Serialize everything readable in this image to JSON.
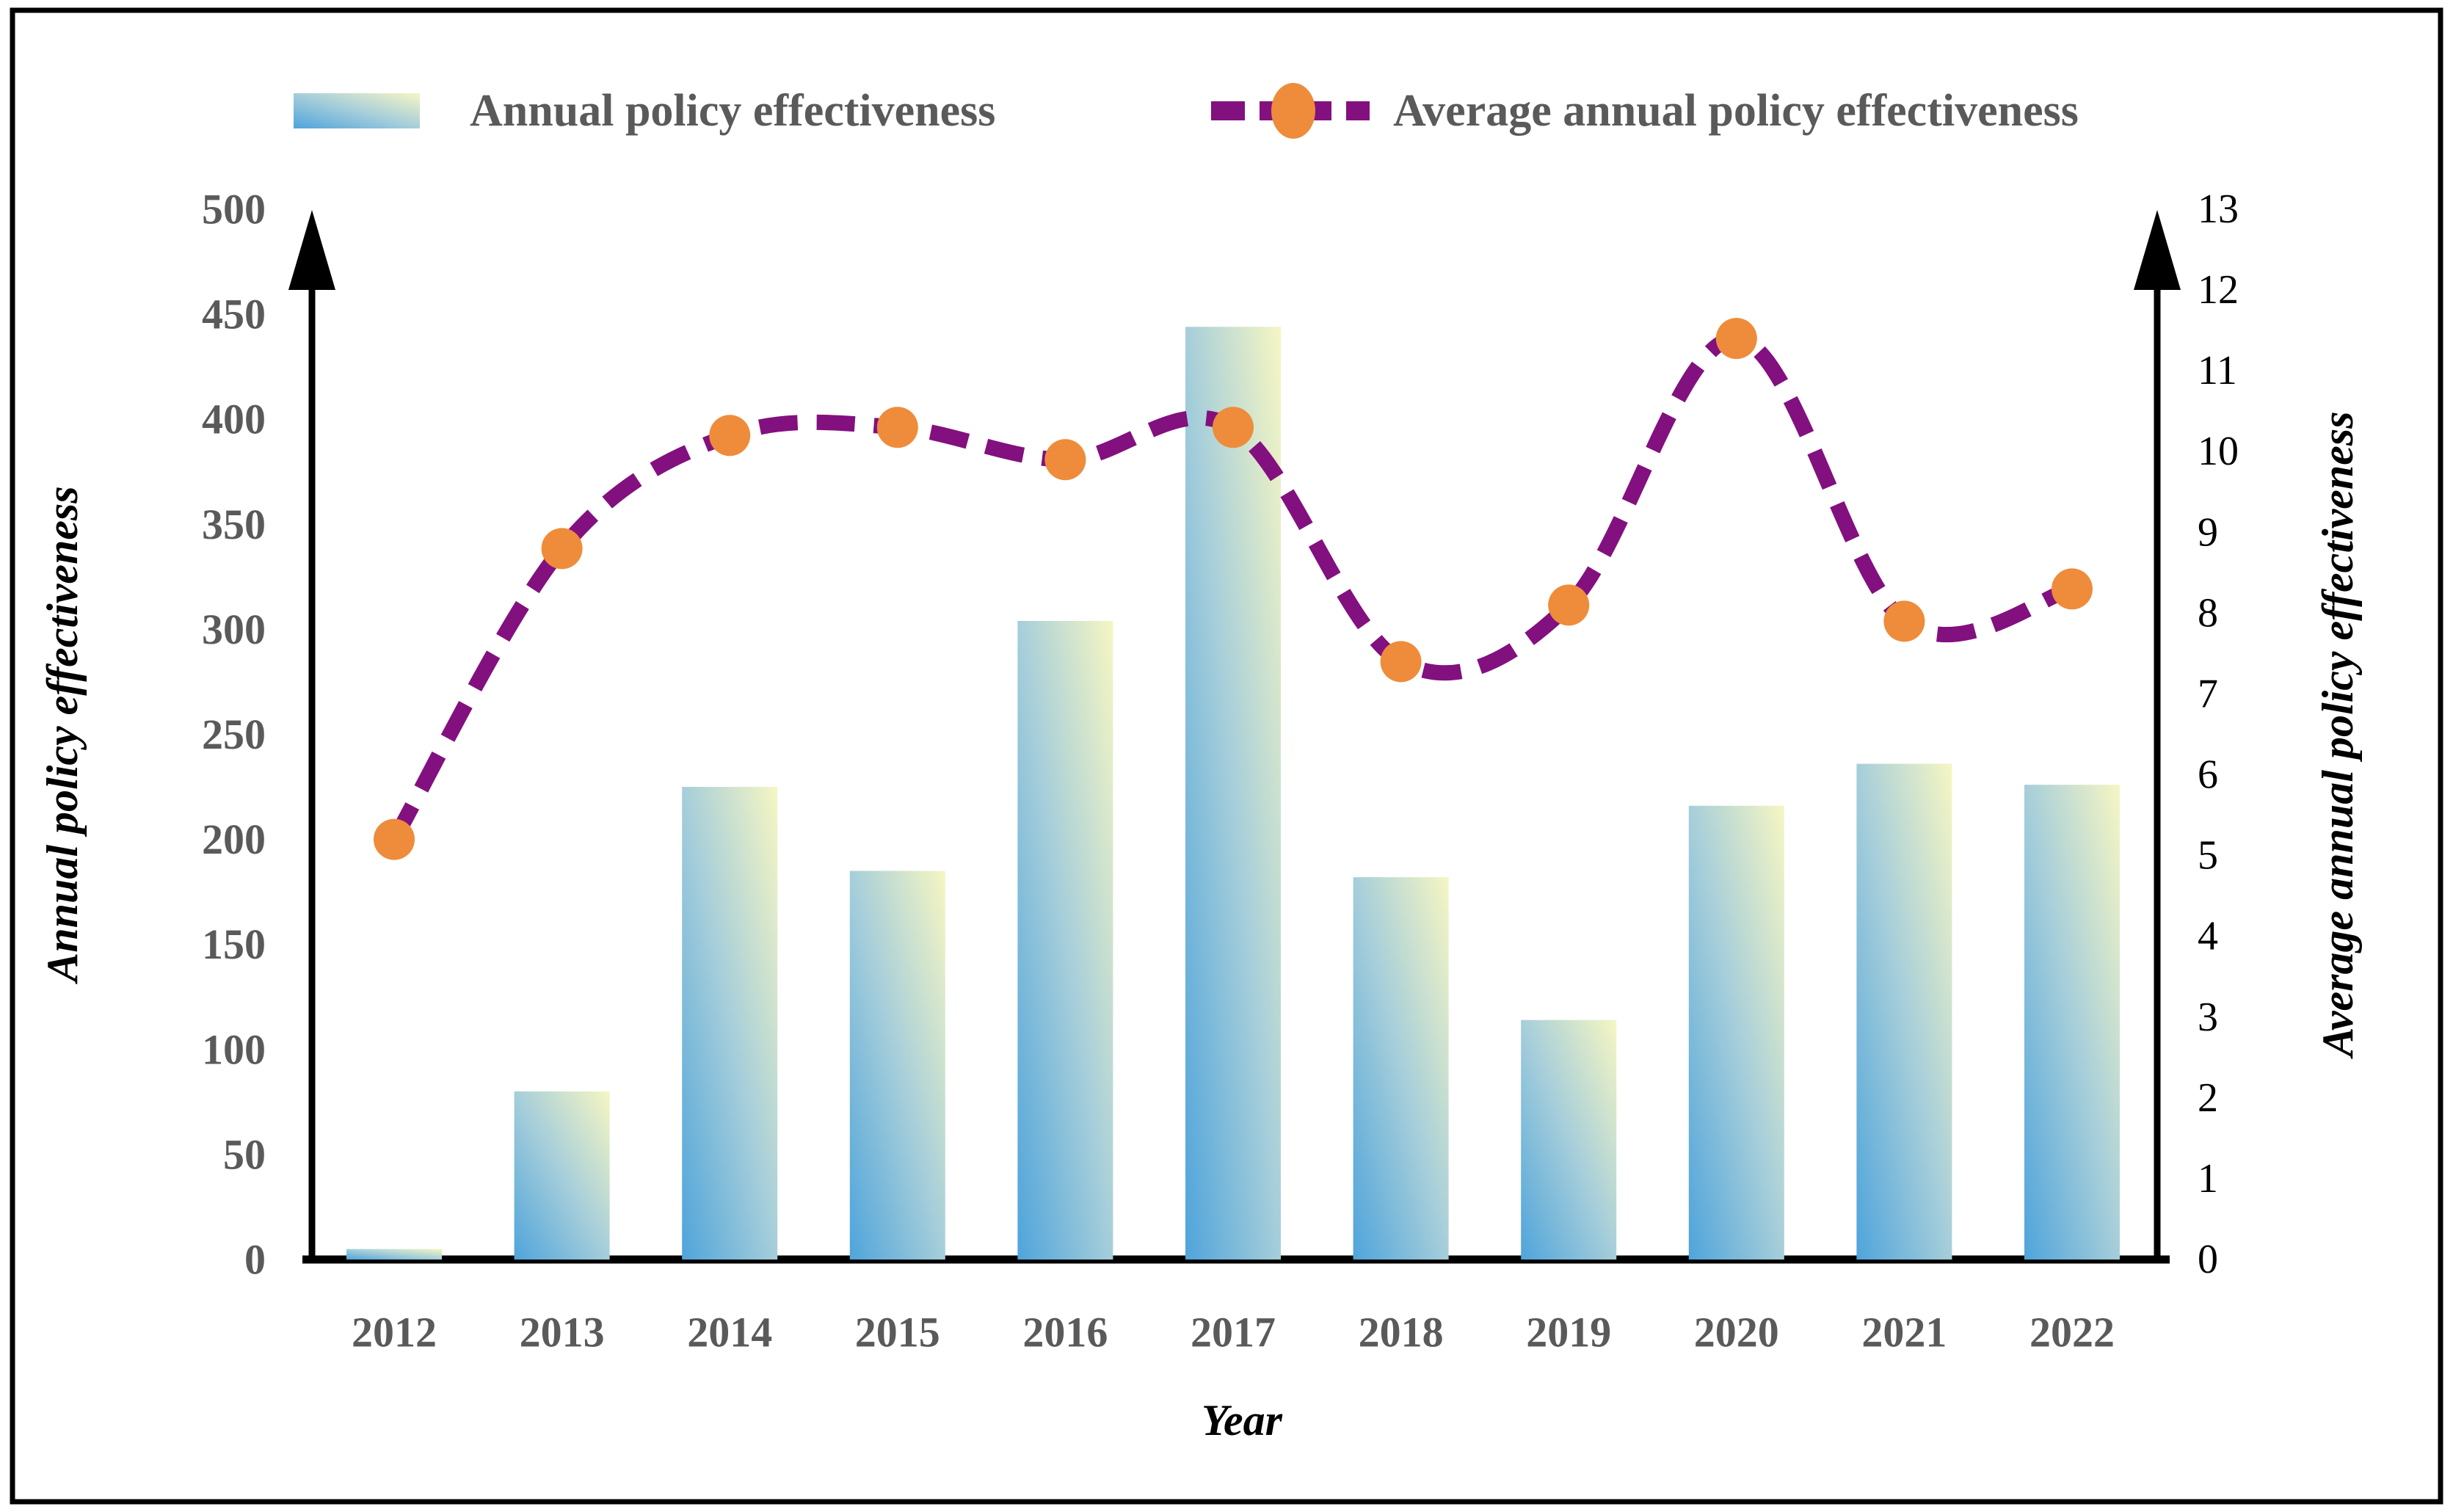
{
  "chart_data": {
    "type": "bar+line combo",
    "categories": [
      "2012",
      "2013",
      "2014",
      "2015",
      "2016",
      "2017",
      "2018",
      "2019",
      "2020",
      "2021",
      "2022"
    ],
    "series": [
      {
        "name": "Annual policy effectiveness",
        "type": "bar",
        "axis": "left",
        "values": [
          5,
          80,
          225,
          185,
          304,
          444,
          182,
          114,
          216,
          236,
          226
        ]
      },
      {
        "name": "Average annual policy effectiveness",
        "type": "line",
        "axis": "right",
        "values": [
          5.2,
          8.8,
          10.2,
          10.3,
          9.9,
          10.3,
          7.4,
          8.1,
          11.4,
          7.9,
          8.3
        ]
      }
    ],
    "xlabel": "Year",
    "ylabel_left": "Annual policy effectiveness",
    "ylabel_right": "Average annual policy effectiveness",
    "ylim_left": [
      0,
      500
    ],
    "ylim_right": [
      0,
      13
    ],
    "yticks_left": [
      0,
      50,
      100,
      150,
      200,
      250,
      300,
      350,
      400,
      450,
      500
    ],
    "yticks_right": [
      0,
      1,
      2,
      3,
      4,
      5,
      6,
      7,
      8,
      9,
      10,
      11,
      12,
      13
    ],
    "grid": "off",
    "legend_position": "top",
    "colors": {
      "bar_gradient": [
        "#4FA4DB",
        "#A6CEDA",
        "#F6F6C3"
      ],
      "line": "#83107F",
      "marker": "#EE8C3B",
      "tick_text_gray": "#5a5a5a",
      "tick_text_black": "#000000",
      "axis_line": "#000000",
      "border": "#000000"
    }
  }
}
